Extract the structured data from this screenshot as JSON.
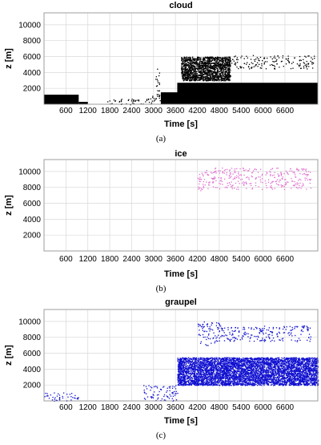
{
  "chart_data": [
    {
      "type": "scatter",
      "subplot_label": "(a)",
      "title": "cloud",
      "xlabel": "Time [s]",
      "ylabel": "z [m]",
      "xlim": [
        0,
        7500
      ],
      "ylim": [
        0,
        11500
      ],
      "xticks": [
        600,
        1200,
        1800,
        2400,
        3000,
        3600,
        4200,
        4800,
        5400,
        6000,
        6600
      ],
      "yticks": [
        2000,
        4000,
        6000,
        8000,
        10000
      ],
      "grid": true,
      "color": "#000000",
      "regions": [
        {
          "x": [
            0,
            950
          ],
          "z": [
            0,
            1200
          ],
          "fill": "solid"
        },
        {
          "x": [
            950,
            1200
          ],
          "z": [
            0,
            300
          ],
          "fill": "solid"
        },
        {
          "x": [
            1600,
            2800
          ],
          "z": [
            0,
            700
          ],
          "fill": "sparse"
        },
        {
          "x": [
            2800,
            3050
          ],
          "z": [
            0,
            1500
          ],
          "fill": "sparse"
        },
        {
          "x": [
            3050,
            3200
          ],
          "z": [
            500,
            4500
          ],
          "fill": "sparse"
        },
        {
          "x": [
            3200,
            3700
          ],
          "z": [
            0,
            1500
          ],
          "fill": "solid"
        },
        {
          "x": [
            3650,
            7500
          ],
          "z": [
            0,
            2700
          ],
          "fill": "solid"
        },
        {
          "x": [
            3750,
            5100
          ],
          "z": [
            3000,
            6000
          ],
          "fill": "dense"
        },
        {
          "x": [
            5100,
            7400
          ],
          "z": [
            4500,
            6200
          ],
          "fill": "sparse"
        }
      ]
    },
    {
      "type": "scatter",
      "subplot_label": "(b)",
      "title": "ice",
      "xlabel": "Time [s]",
      "ylabel": "z [m]",
      "xlim": [
        0,
        7500
      ],
      "ylim": [
        0,
        11500
      ],
      "xticks": [
        600,
        1200,
        1800,
        2400,
        3000,
        3600,
        4200,
        4800,
        5400,
        6000,
        6600
      ],
      "yticks": [
        2000,
        4000,
        6000,
        8000,
        10000
      ],
      "grid": true,
      "color": "#e070d0",
      "regions": [
        {
          "x": [
            4200,
            4600
          ],
          "z": [
            7500,
            10200
          ],
          "fill": "sparse"
        },
        {
          "x": [
            4600,
            7300
          ],
          "z": [
            7800,
            10500
          ],
          "fill": "sparse"
        }
      ]
    },
    {
      "type": "scatter",
      "subplot_label": "(c)",
      "title": "graupel",
      "xlabel": "Time [s]",
      "ylabel": "z [m]",
      "xlim": [
        0,
        7500
      ],
      "ylim": [
        0,
        11500
      ],
      "xticks": [
        600,
        1200,
        1800,
        2400,
        3000,
        3600,
        4200,
        4800,
        5400,
        6000,
        6600
      ],
      "yticks": [
        2000,
        4000,
        6000,
        8000,
        10000
      ],
      "grid": true,
      "color": "#1010d0",
      "regions": [
        {
          "x": [
            0,
            950
          ],
          "z": [
            0,
            1100
          ],
          "fill": "sparse"
        },
        {
          "x": [
            2700,
            3650
          ],
          "z": [
            0,
            2000
          ],
          "fill": "sparse"
        },
        {
          "x": [
            3650,
            7500
          ],
          "z": [
            2000,
            5500
          ],
          "fill": "dense"
        },
        {
          "x": [
            4200,
            4800
          ],
          "z": [
            7000,
            10000
          ],
          "fill": "sparse"
        },
        {
          "x": [
            4800,
            7300
          ],
          "z": [
            7500,
            9500
          ],
          "fill": "sparse"
        }
      ]
    }
  ]
}
